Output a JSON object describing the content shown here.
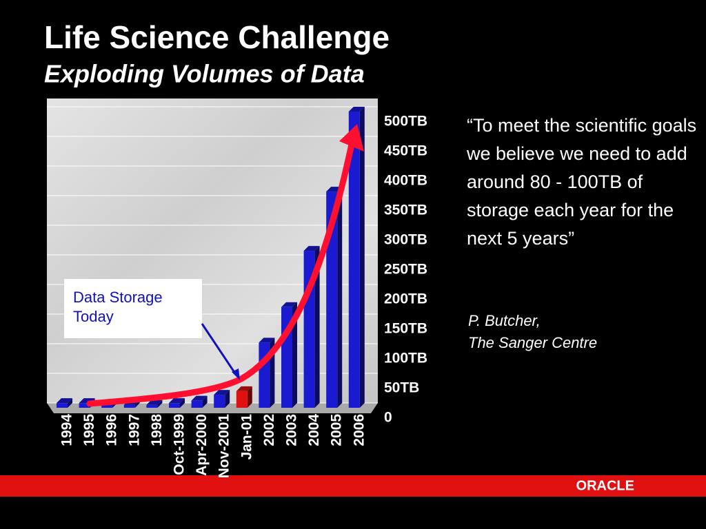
{
  "chart_data": {
    "type": "bar3d",
    "title": "Life Science Challenge",
    "subtitle": "Exploding Volumes of Data",
    "categories": [
      "1994",
      "1995",
      "1996",
      "1997",
      "1998",
      "Oct-1999",
      "Apr-2000",
      "Nov-2001",
      "Jan-01",
      "2002",
      "2003",
      "2004",
      "2005",
      "2006"
    ],
    "values": [
      8,
      8,
      6,
      5,
      5,
      8,
      12,
      22,
      28,
      110,
      170,
      265,
      365,
      500
    ],
    "colors": [
      "#1a1ad0",
      "#1a1ad0",
      "#1a1ad0",
      "#1a1ad0",
      "#1a1ad0",
      "#1a1ad0",
      "#1a1ad0",
      "#1a1ad0",
      "#e01010",
      "#1a1ad0",
      "#1a1ad0",
      "#1a1ad0",
      "#1a1ad0",
      "#1a1ad0"
    ],
    "ylim": [
      0,
      500
    ],
    "yticks": [
      0,
      {
        "value": 50,
        "label": "50TB"
      },
      {
        "value": 100,
        "label": "100TB"
      },
      {
        "value": 150,
        "label": "150TB"
      },
      {
        "value": 200,
        "label": "200TB"
      },
      {
        "value": 250,
        "label": "250TB"
      },
      {
        "value": 300,
        "label": "300TB"
      },
      {
        "value": 350,
        "label": "350TB"
      },
      {
        "value": 400,
        "label": "400TB"
      },
      {
        "value": 450,
        "label": "450TB"
      },
      {
        "value": 500,
        "label": "500TB"
      }
    ],
    "grid": true,
    "annotation": "Data Storage Today"
  },
  "quote": "“To meet the scientific goals we believe we need to add around 80 - 100TB of storage each year for the next 5 years”",
  "attribution": [
    "P. Butcher,",
    "The Sanger Centre"
  ],
  "footer_logo": "ORACLE"
}
